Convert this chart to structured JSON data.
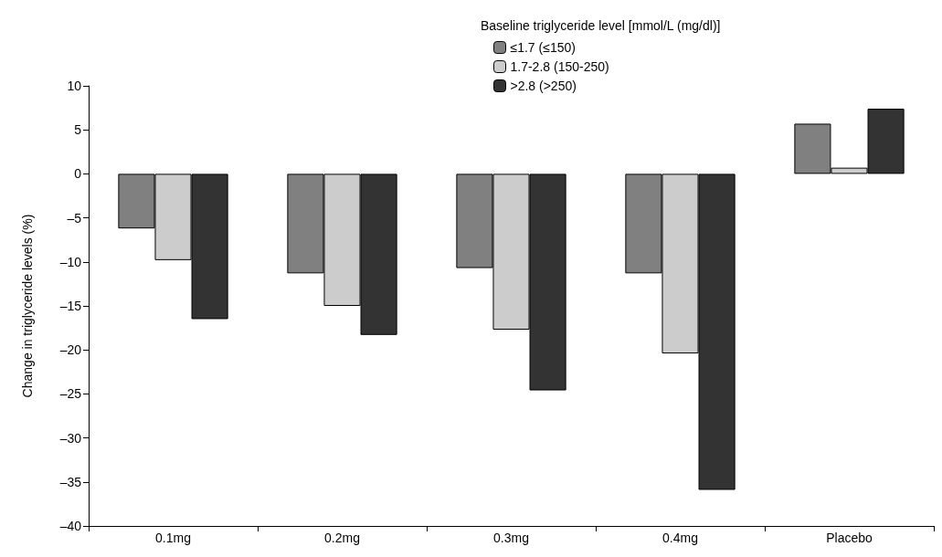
{
  "chart_data": {
    "type": "bar",
    "ylabel": "Change in triglyceride levels (%)",
    "legend_title": "Baseline triglyceride level [mmol/L (mg/dl)]",
    "categories": [
      "0.1mg",
      "0.2mg",
      "0.3mg",
      "0.4mg",
      "Placebo"
    ],
    "series": [
      {
        "name": "≤1.7 (≤150)",
        "color": "#808080",
        "values": [
          -6.2,
          -11.3,
          -10.7,
          -11.3,
          5.7
        ]
      },
      {
        "name": "1.7-2.8 (150-250)",
        "color": "#cccccc",
        "values": [
          -9.8,
          -15.0,
          -17.7,
          -20.4,
          0.7
        ]
      },
      {
        "name": ">2.8 (>250)",
        "color": "#333333",
        "values": [
          -16.5,
          -18.3,
          -24.6,
          -35.9,
          7.4
        ]
      }
    ],
    "ylim": [
      -40,
      10
    ],
    "yticks": [
      10,
      5,
      0,
      {
        "value": -5,
        "label": "–5"
      },
      {
        "value": -10,
        "label": "–10"
      },
      {
        "value": -15,
        "label": "–15"
      },
      {
        "value": -20,
        "label": "–20"
      },
      {
        "value": -25,
        "label": "–25"
      },
      {
        "value": -30,
        "label": "–30"
      },
      {
        "value": -35,
        "label": "–35"
      },
      {
        "value": -40,
        "label": "–40"
      }
    ],
    "grid": false,
    "legend": "top right"
  }
}
